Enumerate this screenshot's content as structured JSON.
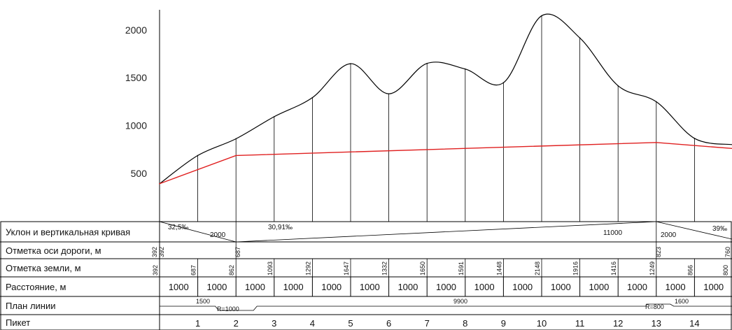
{
  "chart_data": {
    "type": "line",
    "title": "",
    "ylim": [
      300,
      2200
    ],
    "yticks": [
      500,
      1000,
      1500,
      2000
    ],
    "pickets": [
      0,
      1,
      2,
      3,
      4,
      5,
      6,
      7,
      8,
      9,
      10,
      11,
      12,
      13,
      14,
      15
    ],
    "picket_labels": [
      "",
      "1",
      "2",
      "3",
      "4",
      "5",
      "6",
      "7",
      "8",
      "9",
      "10",
      "11",
      "12",
      "13",
      "14",
      ""
    ],
    "series": [
      {
        "name": "",
        "color": "#000000",
        "values": [
          392,
          687,
          862,
          1093,
          1292,
          1647,
          1332,
          1650,
          1591,
          1448,
          2148,
          1916,
          1416,
          1249,
          866,
          800
        ]
      },
      {
        "name": "",
        "color": "#e02020",
        "values": [
          392,
          null,
          687,
          null,
          null,
          null,
          null,
          null,
          null,
          null,
          null,
          null,
          null,
          823,
          null,
          760
        ]
      }
    ],
    "table": {
      "rows": [
        {
          "label": "Уклон и вертикальная кривая"
        },
        {
          "label": "Отметка оси дороги, м"
        },
        {
          "label": "Отметка земли, м"
        },
        {
          "label": "Расстояние, м"
        },
        {
          "label": "План линии"
        },
        {
          "label": "Пикет"
        }
      ],
      "slope_texts": [
        "32,5‰",
        "2000",
        "30,91‰",
        "11000",
        "2000",
        "39‰"
      ],
      "road_axis": [
        "392",
        "392",
        "687",
        "823",
        "760"
      ],
      "ground": [
        "392",
        "687",
        "862",
        "1093",
        "1292",
        "1647",
        "1332",
        "1650",
        "1591",
        "1448",
        "2148",
        "1916",
        "1416",
        "1249",
        "866",
        "800"
      ],
      "distances": [
        "1000",
        "1000",
        "1000",
        "1000",
        "1000",
        "1000",
        "1000",
        "1000",
        "1000",
        "1000",
        "1000",
        "1000",
        "1000",
        "1000",
        "1000"
      ],
      "plan_texts": [
        "1500",
        "R=1000",
        "9900",
        "R=800",
        "1600"
      ]
    }
  }
}
